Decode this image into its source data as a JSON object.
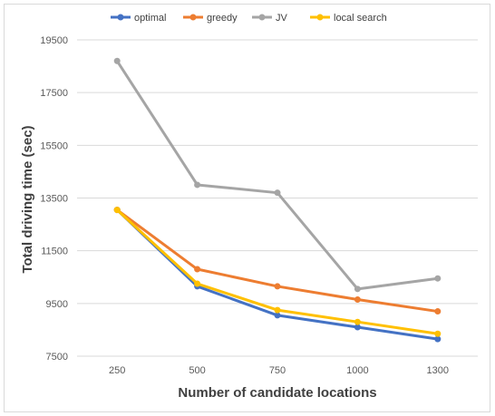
{
  "chart_data": {
    "type": "line",
    "title": "",
    "xlabel": "Number of candidate locations",
    "ylabel": "Total driving time (sec)",
    "categories": [
      "250",
      "500",
      "750",
      "1000",
      "1300"
    ],
    "ylim": [
      7500,
      19500
    ],
    "yticks": [
      7500,
      9500,
      11500,
      13500,
      15500,
      17500,
      19500
    ],
    "grid": true,
    "legend": "top",
    "series": [
      {
        "name": "optimal",
        "color": "#4472c4",
        "values": [
          13050,
          10150,
          9050,
          8600,
          8150
        ]
      },
      {
        "name": "greedy",
        "color": "#ed7d31",
        "values": [
          13050,
          10800,
          10150,
          9650,
          9200
        ]
      },
      {
        "name": "JV",
        "color": "#a5a5a5",
        "values": [
          18700,
          14000,
          13700,
          10050,
          10450
        ]
      },
      {
        "name": "local search",
        "color": "#ffc000",
        "values": [
          13050,
          10250,
          9250,
          8800,
          8350
        ]
      }
    ]
  }
}
